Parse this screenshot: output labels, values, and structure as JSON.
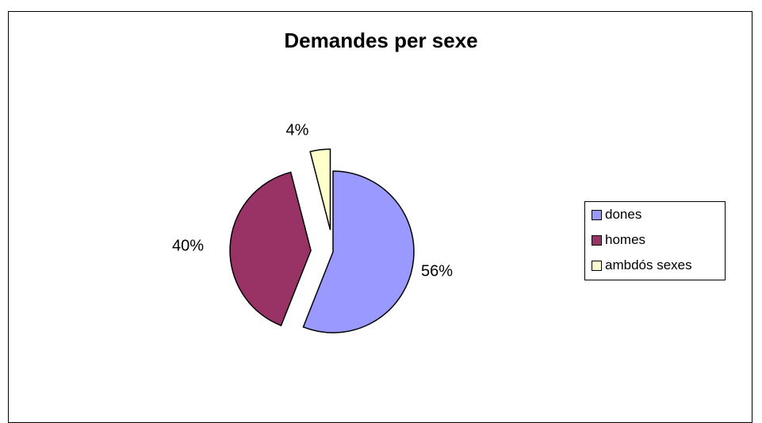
{
  "chart_data": {
    "type": "pie",
    "title": "Demandes per sexe",
    "categories": [
      "dones",
      "homes",
      "ambdós sexes"
    ],
    "values": [
      56,
      40,
      4
    ],
    "value_labels": [
      "56%",
      "40%",
      "4%"
    ],
    "colors": [
      "#9999ff",
      "#993366",
      "#ffffcc"
    ],
    "exploded": true,
    "legend_position": "right"
  }
}
